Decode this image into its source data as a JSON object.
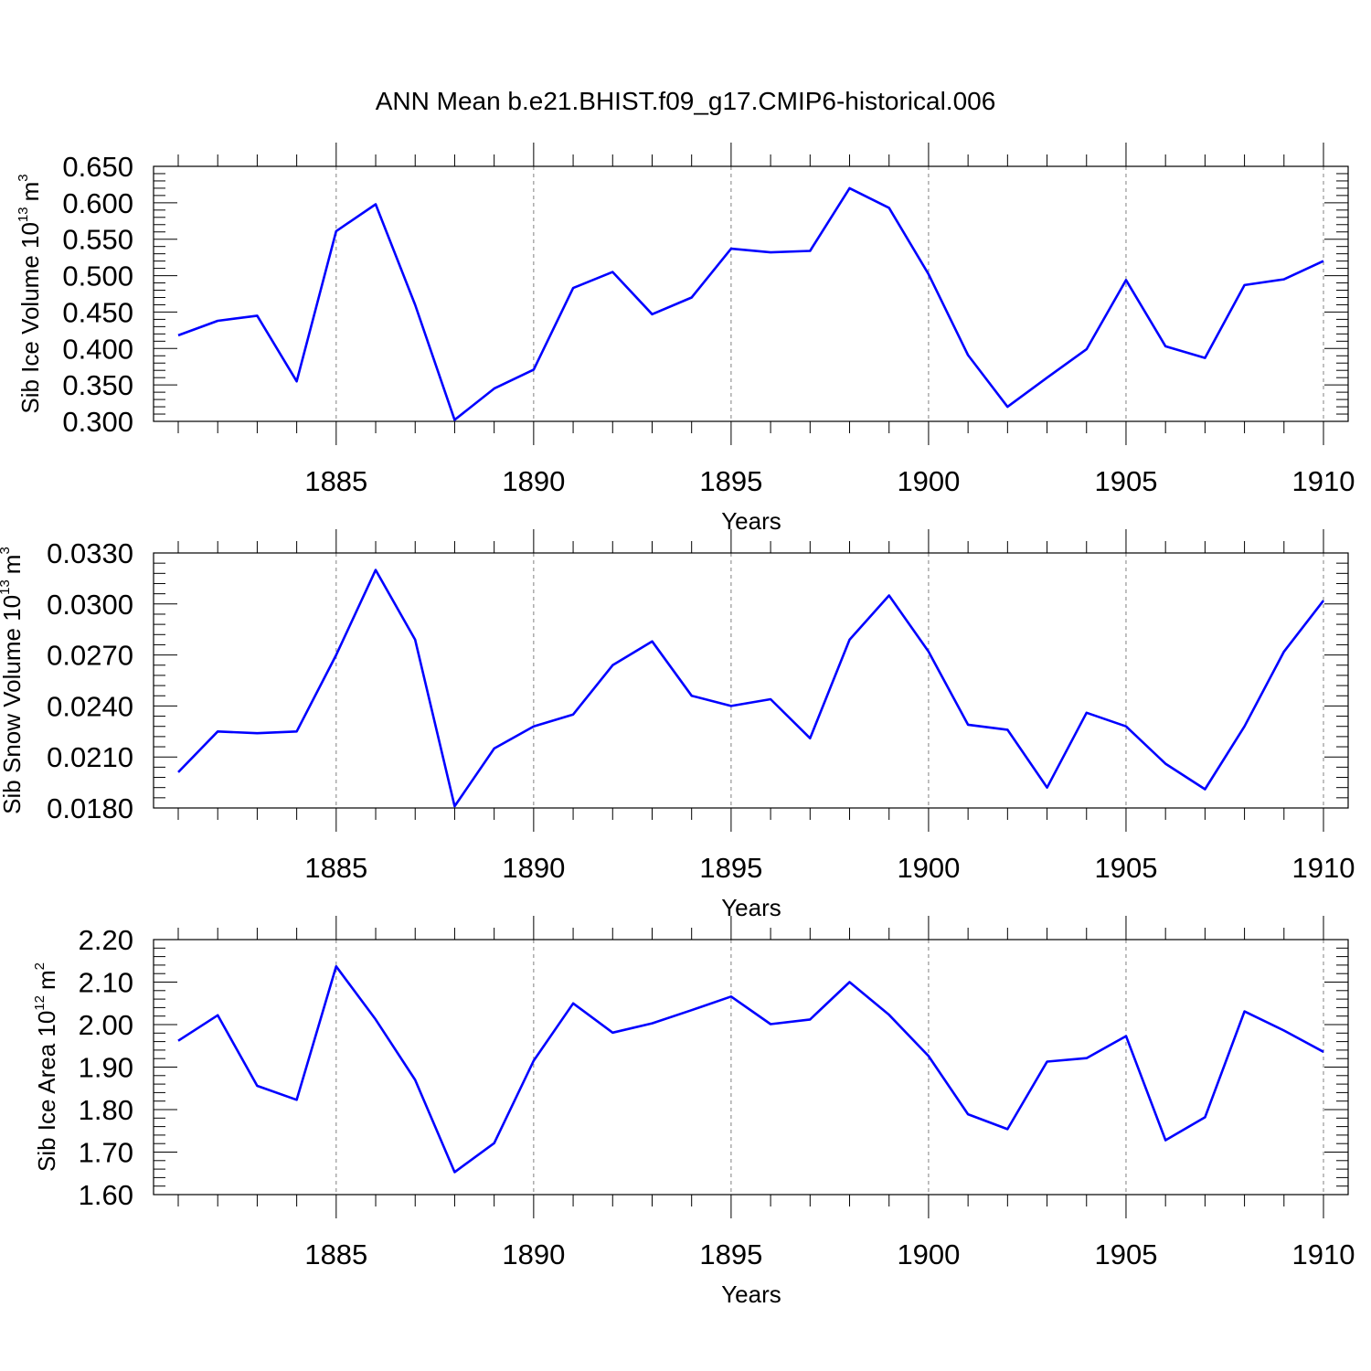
{
  "title": "ANN Mean b.e21.BHIST.f09_g17.CMIP6-historical.006",
  "colors": {
    "line": "#0000ff",
    "axis": "#000000",
    "grid": "#808080"
  },
  "chart_data": [
    {
      "type": "line",
      "xlabel": "Years",
      "ylabel": {
        "text": "Sib Ice Volume 10",
        "exponent": "13",
        "unit": "m",
        "unit_exponent": "3"
      },
      "ylim": [
        0.3,
        0.65
      ],
      "xlim": [
        1881,
        1910
      ],
      "yticks": [
        "0.300",
        "0.350",
        "0.400",
        "0.450",
        "0.500",
        "0.550",
        "0.600",
        "0.650"
      ],
      "xticks": [
        "1885",
        "1890",
        "1895",
        "1900",
        "1905",
        "1910"
      ],
      "grid": "vertical dashed at major x ticks",
      "x": [
        1881,
        1882,
        1883,
        1884,
        1885,
        1886,
        1887,
        1888,
        1889,
        1890,
        1891,
        1892,
        1893,
        1894,
        1895,
        1896,
        1897,
        1898,
        1899,
        1900,
        1901,
        1902,
        1903,
        1904,
        1905,
        1906,
        1907,
        1908,
        1909,
        1910
      ],
      "values": [
        0.418,
        0.438,
        0.445,
        0.355,
        0.561,
        0.598,
        0.46,
        0.302,
        0.345,
        0.371,
        0.483,
        0.505,
        0.447,
        0.47,
        0.537,
        0.532,
        0.534,
        0.62,
        0.593,
        0.502,
        0.391,
        0.32,
        0.36,
        0.399,
        0.494,
        0.403,
        0.387,
        0.487,
        0.495,
        0.52
      ]
    },
    {
      "type": "line",
      "xlabel": "Years",
      "ylabel": {
        "text": "Sib Snow Volume 10",
        "exponent": "13",
        "unit": "m",
        "unit_exponent": "3"
      },
      "ylim": [
        0.018,
        0.033
      ],
      "xlim": [
        1881,
        1910
      ],
      "yticks": [
        "0.0180",
        "0.0210",
        "0.0240",
        "0.0270",
        "0.0300",
        "0.0330"
      ],
      "xticks": [
        "1885",
        "1890",
        "1895",
        "1900",
        "1905",
        "1910"
      ],
      "grid": "vertical dashed at major x ticks",
      "x": [
        1881,
        1882,
        1883,
        1884,
        1885,
        1886,
        1887,
        1888,
        1889,
        1890,
        1891,
        1892,
        1893,
        1894,
        1895,
        1896,
        1897,
        1898,
        1899,
        1900,
        1901,
        1902,
        1903,
        1904,
        1905,
        1906,
        1907,
        1908,
        1909,
        1910
      ],
      "values": [
        0.0201,
        0.0225,
        0.0224,
        0.0225,
        0.027,
        0.032,
        0.0279,
        0.0181,
        0.0215,
        0.0228,
        0.0235,
        0.0264,
        0.0278,
        0.0246,
        0.024,
        0.0244,
        0.0221,
        0.0279,
        0.0305,
        0.0272,
        0.0229,
        0.0226,
        0.0192,
        0.0236,
        0.0228,
        0.0206,
        0.0191,
        0.0228,
        0.0272,
        0.0302
      ]
    },
    {
      "type": "line",
      "xlabel": "Years",
      "ylabel": {
        "text": "Sib Ice Area 10",
        "exponent": "12",
        "unit": "m",
        "unit_exponent": "2"
      },
      "ylim": [
        1.6,
        2.2
      ],
      "xlim": [
        1881,
        1910
      ],
      "yticks": [
        "1.60",
        "1.70",
        "1.80",
        "1.90",
        "2.00",
        "2.10",
        "2.20"
      ],
      "xticks": [
        "1885",
        "1890",
        "1895",
        "1900",
        "1905",
        "1910"
      ],
      "grid": "vertical dashed at major x ticks",
      "x": [
        1881,
        1882,
        1883,
        1884,
        1885,
        1886,
        1887,
        1888,
        1889,
        1890,
        1891,
        1892,
        1893,
        1894,
        1895,
        1896,
        1897,
        1898,
        1899,
        1900,
        1901,
        1902,
        1903,
        1904,
        1905,
        1906,
        1907,
        1908,
        1909,
        1910
      ],
      "values": [
        1.962,
        2.022,
        1.856,
        1.823,
        2.137,
        2.012,
        1.87,
        1.653,
        1.721,
        1.915,
        2.05,
        1.981,
        2.003,
        2.034,
        2.066,
        2.001,
        2.012,
        2.1,
        2.023,
        1.926,
        1.789,
        1.754,
        1.913,
        1.921,
        1.973,
        1.728,
        1.782,
        2.031,
        1.986,
        1.936
      ]
    }
  ]
}
